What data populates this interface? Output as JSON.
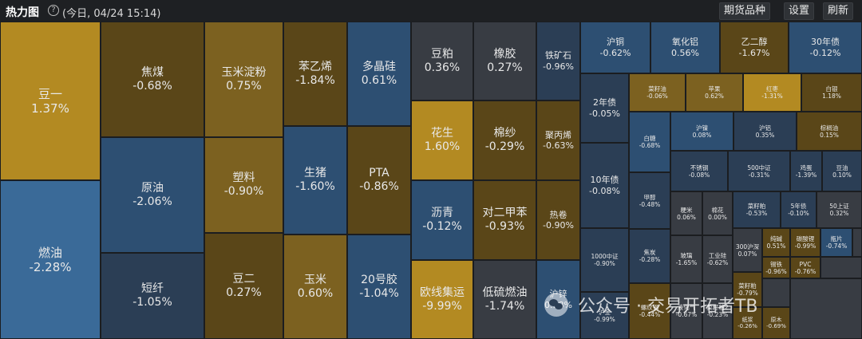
{
  "header": {
    "title": "热力图",
    "subtitle": "(今日, 04/24 15:14)",
    "buttons": {
      "futures": "期货品种",
      "settings": "设置",
      "refresh": "刷新"
    }
  },
  "colors": {
    "up_strong": "#b38a22",
    "up": "#7c6120",
    "up_mild": "#5a4618",
    "flat": "#383c43",
    "down_mild": "#2b3e55",
    "down": "#2d4f72",
    "down_strong": "#3a6a98",
    "background": "#1b1d20"
  },
  "tiles": [
    {
      "name": "豆一",
      "pct": "1.37%",
      "tone": "up_strong"
    },
    {
      "name": "燃油",
      "pct": "-2.28%",
      "tone": "down_strong"
    },
    {
      "name": "焦煤",
      "pct": "-0.68%",
      "tone": "up_mild"
    },
    {
      "name": "原油",
      "pct": "-2.06%",
      "tone": "down"
    },
    {
      "name": "短纤",
      "pct": "-1.05%",
      "tone": "down_mild"
    },
    {
      "name": "玉米淀粉",
      "pct": "0.75%",
      "tone": "up"
    },
    {
      "name": "塑料",
      "pct": "-0.90%",
      "tone": "up"
    },
    {
      "name": "豆二",
      "pct": "0.27%",
      "tone": "up_mild"
    },
    {
      "name": "苯乙烯",
      "pct": "-1.84%",
      "tone": "up_mild"
    },
    {
      "name": "生猪",
      "pct": "-1.60%",
      "tone": "down"
    },
    {
      "name": "玉米",
      "pct": "0.60%",
      "tone": "up"
    },
    {
      "name": "多晶硅",
      "pct": "0.61%",
      "tone": "down"
    },
    {
      "name": "PTA",
      "pct": "-0.86%",
      "tone": "up_mild"
    },
    {
      "name": "20号胶",
      "pct": "-1.04%",
      "tone": "down"
    },
    {
      "name": "豆粕",
      "pct": "0.36%",
      "tone": "flat"
    },
    {
      "name": "花生",
      "pct": "1.60%",
      "tone": "up_strong"
    },
    {
      "name": "沥青",
      "pct": "-0.12%",
      "tone": "down"
    },
    {
      "name": "欧线集运",
      "pct": "-9.99%",
      "tone": "up_strong"
    },
    {
      "name": "橡胶",
      "pct": "0.27%",
      "tone": "flat"
    },
    {
      "name": "棉纱",
      "pct": "-0.29%",
      "tone": "up_mild"
    },
    {
      "name": "对二甲苯",
      "pct": "-0.93%",
      "tone": "up_mild"
    },
    {
      "name": "低硫燃油",
      "pct": "-1.74%",
      "tone": "flat"
    },
    {
      "name": "铁矿石",
      "pct": "-0.96%",
      "tone": "down_mild"
    },
    {
      "name": "聚丙烯",
      "pct": "-0.63%",
      "tone": "up_mild"
    },
    {
      "name": "热卷",
      "pct": "-0.90%",
      "tone": "up_mild"
    },
    {
      "name": "沪锌",
      "pct": "0.98%",
      "tone": "down"
    },
    {
      "name": "沪铜",
      "pct": "-0.62%",
      "tone": "down"
    },
    {
      "name": "氧化铝",
      "pct": "0.56%",
      "tone": "down"
    },
    {
      "name": "乙二醇",
      "pct": "-1.67%",
      "tone": "up_mild"
    },
    {
      "name": "30年债",
      "pct": "-0.12%",
      "tone": "down"
    },
    {
      "name": "2年债",
      "pct": "-0.05%",
      "tone": "down_mild"
    },
    {
      "name": "10年债",
      "pct": "-0.08%",
      "tone": "down_mild"
    },
    {
      "name": "1000中证",
      "pct": "-0.90%",
      "tone": "down_mild"
    },
    {
      "name": "菜籽油",
      "pct": "-0.06%",
      "tone": "up"
    },
    {
      "name": "苹果",
      "pct": "0.62%",
      "tone": "up"
    },
    {
      "name": "红枣",
      "pct": "-1.31%",
      "tone": "up_strong"
    },
    {
      "name": "白银",
      "pct": "1.18%",
      "tone": "up_mild"
    },
    {
      "name": "白糖",
      "pct": "-0.68%",
      "tone": "down"
    },
    {
      "name": "沪镍",
      "pct": "0.08%",
      "tone": "down"
    },
    {
      "name": "沪铝",
      "pct": "0.35%",
      "tone": "down_mild"
    },
    {
      "name": "棕榈油",
      "pct": "0.15%",
      "tone": "up_mild"
    },
    {
      "name": "甲醇",
      "pct": "-0.48%",
      "tone": "down_mild"
    },
    {
      "name": "不锈钢",
      "pct": "-0.08%",
      "tone": "down_mild"
    },
    {
      "name": "500中证",
      "pct": "-0.31%",
      "tone": "down_mild"
    },
    {
      "name": "鸡蛋",
      "pct": "-1.39%",
      "tone": "down_mild"
    },
    {
      "name": "豆油",
      "pct": "0.10%",
      "tone": "down_mild"
    },
    {
      "name": "焦炭",
      "pct": "-0.28%",
      "tone": "down_mild"
    },
    {
      "name": "粳米",
      "pct": "0.06%",
      "tone": "flat"
    },
    {
      "name": "棉花",
      "pct": "0.00%",
      "tone": "flat"
    },
    {
      "name": "玉米淀粉2",
      "pct": "",
      "tone": "flat",
      "hidden": true
    },
    {
      "name": "菜籽粕",
      "pct": "-0.53%",
      "tone": "down_mild"
    },
    {
      "name": "5年债",
      "pct": "-0.10%",
      "tone": "down_mild"
    },
    {
      "name": "50上证",
      "pct": "0.32%",
      "tone": "flat"
    },
    {
      "name": "玻璃",
      "pct": "-1.65%",
      "tone": "flat"
    },
    {
      "name": "工业硅",
      "pct": "-0.62%",
      "tone": "flat"
    },
    {
      "name": "300沪深",
      "pct": "0.07%",
      "tone": "flat"
    },
    {
      "name": "纯碱",
      "pct": "0.51%",
      "tone": "up_mild"
    },
    {
      "name": "碳酸锂",
      "pct": "-0.99%",
      "tone": "up_mild"
    },
    {
      "name": "瓶片",
      "pct": "-0.74%",
      "tone": "down"
    },
    {
      "name": "锡铁",
      "pct": "-0.96%",
      "tone": "up_mild"
    },
    {
      "name": "PVC",
      "pct": "-0.76%",
      "tone": "up_mild"
    },
    {
      "name": "沪金",
      "pct": "-0.99%",
      "tone": "down_mild"
    },
    {
      "name": "螺纹钢",
      "pct": "-0.44%",
      "tone": "up_mild"
    },
    {
      "name": "液化气",
      "pct": "-0.67%",
      "tone": "flat"
    },
    {
      "name": "菜籽粕2",
      "pct": "-0.23%",
      "tone": "flat"
    },
    {
      "name": "菜籽粕",
      "pct": "-0.79%",
      "tone": "up_mild"
    },
    {
      "name": "纸浆",
      "pct": "-0.26%",
      "tone": "up_mild"
    },
    {
      "name": "原木",
      "pct": "-0.69%",
      "tone": "up_mild"
    }
  ],
  "watermark": {
    "text": "公众号 · 交易开拓者TB"
  }
}
